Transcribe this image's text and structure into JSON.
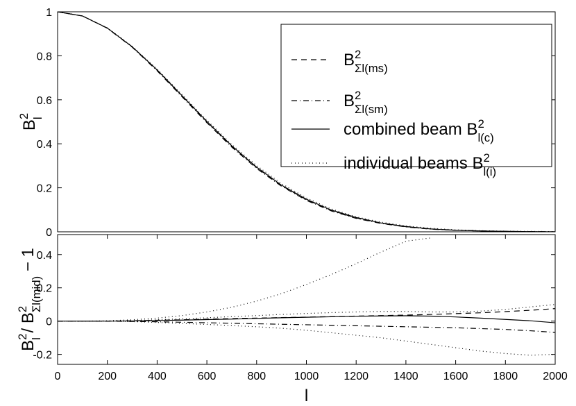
{
  "chart_data": [
    {
      "type": "line",
      "ylabel": {
        "text": "B",
        "sup": "2",
        "sub": "l"
      },
      "xlim": [
        0,
        2000
      ],
      "ylim": [
        0,
        1
      ],
      "yticks": [
        0,
        0.2,
        0.4,
        0.6,
        0.8,
        1
      ],
      "legend": "upper right",
      "x": [
        0,
        100,
        200,
        300,
        400,
        500,
        600,
        700,
        800,
        900,
        1000,
        1100,
        1200,
        1300,
        1400,
        1500,
        1600,
        1700,
        1800,
        1900,
        2000
      ],
      "series": [
        {
          "name": {
            "text": "B",
            "sup": "2",
            "sub": "Σl(ms)"
          },
          "color": "#000000",
          "dash": "8,6",
          "values": [
            1,
            0.981,
            0.926,
            0.841,
            0.735,
            0.618,
            0.5,
            0.389,
            0.292,
            0.21,
            0.146,
            0.097,
            0.063,
            0.039,
            0.023,
            0.013,
            0.007,
            0.004,
            0.002,
            0.001,
            0
          ]
        },
        {
          "name": {
            "text": "B",
            "sup": "2",
            "sub": "Σl(sm)"
          },
          "color": "#000000",
          "dash": "8,4,1,4",
          "values": [
            1,
            0.981,
            0.925,
            0.839,
            0.732,
            0.614,
            0.496,
            0.385,
            0.288,
            0.207,
            0.143,
            0.095,
            0.061,
            0.038,
            0.022,
            0.012,
            0.007,
            0.004,
            0.002,
            0.001,
            0
          ]
        },
        {
          "name": {
            "text": "combined beam B",
            "sup": "2",
            "sub": "l(c)"
          },
          "color": "#000000",
          "dash": null,
          "values": [
            1,
            0.981,
            0.926,
            0.841,
            0.736,
            0.619,
            0.502,
            0.391,
            0.294,
            0.212,
            0.148,
            0.099,
            0.065,
            0.04,
            0.024,
            0.013,
            0.007,
            0.004,
            0.002,
            0.001,
            0
          ]
        },
        {
          "name": {
            "text": "individual beams B",
            "sup": "2",
            "sub": "l(i)"
          },
          "color": "#000000",
          "dash": "1,4",
          "values": [
            1,
            0.981,
            0.927,
            0.843,
            0.739,
            0.624,
            0.507,
            0.397,
            0.301,
            0.219,
            0.154,
            0.104,
            0.068,
            0.044,
            0.027,
            0.016,
            0.009,
            0.005,
            0.003,
            0.002,
            0.001
          ]
        }
      ]
    },
    {
      "type": "line",
      "ylabel": [
        {
          "text": "B",
          "sup": "2",
          "sub": "l"
        },
        {
          "text": " / B",
          "sup": "2",
          "sub": "Σl(mid)"
        },
        {
          "text": " − 1"
        }
      ],
      "xlabel": "l",
      "xlim": [
        0,
        2000
      ],
      "xticks": [
        0,
        200,
        400,
        600,
        800,
        1000,
        1200,
        1400,
        1600,
        1800,
        2000
      ],
      "ylim": [
        -0.26,
        0.52
      ],
      "yticks": [
        -0.2,
        0,
        0.2,
        0.4
      ],
      "x": [
        0,
        100,
        200,
        300,
        400,
        500,
        600,
        700,
        800,
        900,
        1000,
        1100,
        1200,
        1300,
        1400,
        1500,
        1600,
        1700,
        1800,
        1900,
        2000
      ],
      "series": [
        {
          "color": "#000000",
          "dash": "8,6",
          "values": [
            0,
            0,
            0,
            0.002,
            0.005,
            0.008,
            0.012,
            0.015,
            0.018,
            0.021,
            0.024,
            0.027,
            0.03,
            0.033,
            0.036,
            0.04,
            0.045,
            0.05,
            0.057,
            0.065,
            0.075
          ]
        },
        {
          "color": "#000000",
          "dash": "8,4,1,4",
          "values": [
            0,
            0,
            0,
            -0.002,
            -0.004,
            -0.007,
            -0.01,
            -0.013,
            -0.016,
            -0.019,
            -0.022,
            -0.025,
            -0.028,
            -0.031,
            -0.034,
            -0.037,
            -0.04,
            -0.045,
            -0.05,
            -0.058,
            -0.068
          ]
        },
        {
          "color": "#000000",
          "dash": null,
          "values": [
            0,
            0,
            0,
            0.001,
            0.003,
            0.006,
            0.009,
            0.012,
            0.016,
            0.02,
            0.023,
            0.026,
            0.029,
            0.031,
            0.032,
            0.03,
            0.025,
            0.018,
            0.01,
            0.002,
            -0.01
          ]
        },
        {
          "color": "#000000",
          "dash": "1,4",
          "values": [
            0,
            0,
            0.002,
            0.008,
            0.018,
            0.033,
            0.055,
            0.083,
            0.12,
            0.165,
            0.22,
            0.28,
            0.345,
            0.415,
            0.48,
            0.5,
            null,
            null,
            null,
            null,
            null
          ]
        },
        {
          "color": "#000000",
          "dash": "1,4",
          "values": [
            0,
            0,
            0,
            0.003,
            0.008,
            0.014,
            0.02,
            0.027,
            0.033,
            0.04,
            0.046,
            0.051,
            0.055,
            0.058,
            0.058,
            0.055,
            0.055,
            0.06,
            0.07,
            0.085,
            0.1
          ]
        },
        {
          "color": "#000000",
          "dash": "1,4",
          "values": [
            0,
            0,
            0,
            -0.003,
            -0.008,
            -0.014,
            -0.02,
            -0.027,
            -0.034,
            -0.043,
            -0.055,
            -0.07,
            -0.085,
            -0.1,
            -0.12,
            -0.14,
            -0.16,
            -0.18,
            -0.195,
            -0.205,
            -0.2
          ]
        }
      ]
    }
  ]
}
